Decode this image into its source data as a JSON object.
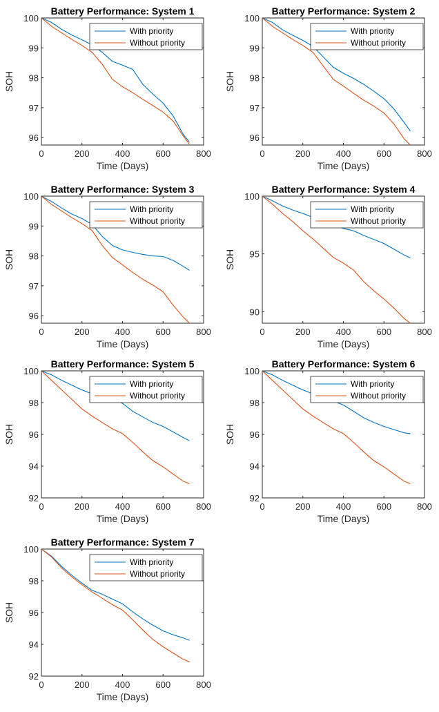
{
  "chart_data": [
    {
      "type": "line",
      "title": "Battery Performance: System 1",
      "xlabel": "Time (Days)",
      "ylabel": "SOH",
      "xlim": [
        0,
        800
      ],
      "ylim": [
        95.75,
        100
      ],
      "xticks": [
        0,
        200,
        400,
        600,
        800
      ],
      "yticks": [
        96,
        97,
        98,
        99,
        100
      ],
      "grid": false,
      "legend": "top-right",
      "series": [
        {
          "name": "With priority",
          "color": "#0072bd",
          "x": [
            0,
            50,
            100,
            150,
            200,
            250,
            300,
            350,
            400,
            450,
            500,
            550,
            600,
            650,
            700,
            730
          ],
          "y": [
            100,
            99.85,
            99.62,
            99.43,
            99.27,
            99.1,
            98.85,
            98.55,
            98.42,
            98.28,
            97.78,
            97.45,
            97.15,
            96.72,
            96.1,
            95.85
          ]
        },
        {
          "name": "Without priority",
          "color": "#d95319",
          "x": [
            0,
            50,
            100,
            150,
            200,
            250,
            300,
            350,
            400,
            450,
            500,
            550,
            600,
            650,
            700,
            730
          ],
          "y": [
            100,
            99.72,
            99.5,
            99.28,
            99.08,
            98.85,
            98.45,
            97.95,
            97.7,
            97.5,
            97.28,
            97.07,
            96.85,
            96.55,
            96.05,
            95.78
          ]
        }
      ]
    },
    {
      "type": "line",
      "title": "Battery Performance: System 2",
      "xlabel": "Time (Days)",
      "ylabel": "SOH",
      "xlim": [
        0,
        800
      ],
      "ylim": [
        95.75,
        100
      ],
      "xticks": [
        0,
        200,
        400,
        600,
        800
      ],
      "yticks": [
        96,
        97,
        98,
        99,
        100
      ],
      "grid": false,
      "legend": "top-right",
      "series": [
        {
          "name": "With priority",
          "color": "#0072bd",
          "x": [
            0,
            50,
            100,
            150,
            200,
            250,
            300,
            350,
            400,
            450,
            500,
            550,
            600,
            650,
            700,
            730
          ],
          "y": [
            100,
            99.85,
            99.6,
            99.42,
            99.25,
            99.05,
            98.7,
            98.35,
            98.15,
            97.98,
            97.78,
            97.55,
            97.3,
            96.95,
            96.5,
            96.22
          ]
        },
        {
          "name": "Without priority",
          "color": "#d95319",
          "x": [
            0,
            50,
            100,
            150,
            200,
            250,
            300,
            350,
            400,
            450,
            500,
            550,
            600,
            650,
            700,
            730
          ],
          "y": [
            100,
            99.72,
            99.5,
            99.28,
            99.08,
            98.85,
            98.4,
            97.95,
            97.72,
            97.48,
            97.25,
            97.05,
            96.82,
            96.45,
            95.95,
            95.75
          ]
        }
      ]
    },
    {
      "type": "line",
      "title": "Battery Performance: System 3",
      "xlabel": "Time (Days)",
      "ylabel": "SOH",
      "xlim": [
        0,
        800
      ],
      "ylim": [
        95.75,
        100
      ],
      "xticks": [
        0,
        200,
        400,
        600,
        800
      ],
      "yticks": [
        96,
        97,
        98,
        99,
        100
      ],
      "grid": false,
      "legend": "top-right",
      "series": [
        {
          "name": "With priority",
          "color": "#0072bd",
          "x": [
            0,
            50,
            100,
            150,
            200,
            250,
            300,
            350,
            400,
            450,
            500,
            550,
            600,
            650,
            700,
            730
          ],
          "y": [
            100,
            99.82,
            99.6,
            99.4,
            99.25,
            99.05,
            98.65,
            98.35,
            98.2,
            98.12,
            98.05,
            98.0,
            97.98,
            97.85,
            97.65,
            97.52
          ]
        },
        {
          "name": "Without priority",
          "color": "#d95319",
          "x": [
            0,
            50,
            100,
            150,
            200,
            250,
            300,
            350,
            400,
            450,
            500,
            550,
            600,
            650,
            700,
            730
          ],
          "y": [
            100,
            99.72,
            99.5,
            99.28,
            99.08,
            98.85,
            98.35,
            97.95,
            97.7,
            97.45,
            97.22,
            97.02,
            96.8,
            96.35,
            95.95,
            95.75
          ]
        }
      ]
    },
    {
      "type": "line",
      "title": "Battery Performance: System 4",
      "xlabel": "Time (Days)",
      "ylabel": "SOH",
      "xlim": [
        0,
        800
      ],
      "ylim": [
        89,
        100
      ],
      "xticks": [
        0,
        200,
        400,
        600,
        800
      ],
      "yticks": [
        90,
        95,
        100
      ],
      "grid": false,
      "legend": "top-right",
      "series": [
        {
          "name": "With priority",
          "color": "#0072bd",
          "x": [
            0,
            50,
            100,
            150,
            200,
            250,
            300,
            350,
            400,
            450,
            500,
            550,
            600,
            650,
            700,
            730
          ],
          "y": [
            100,
            99.6,
            99.15,
            98.8,
            98.5,
            98.15,
            97.8,
            97.5,
            97.2,
            97.0,
            96.6,
            96.25,
            95.9,
            95.4,
            94.9,
            94.65
          ]
        },
        {
          "name": "Without priority",
          "color": "#d95319",
          "x": [
            0,
            50,
            100,
            150,
            200,
            250,
            300,
            350,
            400,
            450,
            500,
            550,
            600,
            650,
            700,
            730
          ],
          "y": [
            100,
            99.3,
            98.5,
            97.8,
            97.0,
            96.3,
            95.5,
            94.7,
            94.2,
            93.6,
            92.6,
            91.8,
            91.1,
            90.3,
            89.4,
            89.0
          ]
        }
      ]
    },
    {
      "type": "line",
      "title": "Battery Performance: System 5",
      "xlabel": "Time (Days)",
      "ylabel": "SOH",
      "xlim": [
        0,
        800
      ],
      "ylim": [
        92,
        100
      ],
      "xticks": [
        0,
        200,
        400,
        600,
        800
      ],
      "yticks": [
        92,
        94,
        96,
        98,
        100
      ],
      "grid": false,
      "legend": "top-right",
      "series": [
        {
          "name": "With priority",
          "color": "#0072bd",
          "x": [
            0,
            50,
            100,
            150,
            200,
            250,
            300,
            350,
            400,
            450,
            500,
            550,
            600,
            650,
            700,
            730
          ],
          "y": [
            100,
            99.75,
            99.4,
            99.1,
            98.8,
            98.55,
            98.4,
            98.2,
            97.95,
            97.45,
            97.1,
            96.75,
            96.5,
            96.15,
            95.8,
            95.6
          ]
        },
        {
          "name": "Without priority",
          "color": "#d95319",
          "x": [
            0,
            50,
            100,
            150,
            200,
            250,
            300,
            350,
            400,
            450,
            500,
            550,
            600,
            650,
            700,
            730
          ],
          "y": [
            100,
            99.4,
            98.8,
            98.2,
            97.6,
            97.15,
            96.75,
            96.35,
            96.05,
            95.5,
            94.9,
            94.35,
            93.95,
            93.5,
            93.05,
            92.9
          ]
        }
      ]
    },
    {
      "type": "line",
      "title": "Battery Performance: System 6",
      "xlabel": "Time (Days)",
      "ylabel": "SOH",
      "xlim": [
        0,
        800
      ],
      "ylim": [
        92,
        100
      ],
      "xticks": [
        0,
        200,
        400,
        600,
        800
      ],
      "yticks": [
        92,
        94,
        96,
        98,
        100
      ],
      "grid": false,
      "legend": "top-right",
      "series": [
        {
          "name": "With priority",
          "color": "#0072bd",
          "x": [
            0,
            50,
            100,
            150,
            200,
            250,
            300,
            350,
            400,
            450,
            500,
            550,
            600,
            650,
            700,
            730
          ],
          "y": [
            100,
            99.75,
            99.4,
            99.1,
            98.8,
            98.55,
            98.35,
            98.1,
            97.85,
            97.45,
            97.05,
            96.75,
            96.5,
            96.3,
            96.1,
            96.05
          ]
        },
        {
          "name": "Without priority",
          "color": "#d95319",
          "x": [
            0,
            50,
            100,
            150,
            200,
            250,
            300,
            350,
            400,
            450,
            500,
            550,
            600,
            650,
            700,
            730
          ],
          "y": [
            100,
            99.4,
            98.8,
            98.2,
            97.6,
            97.15,
            96.75,
            96.35,
            96.05,
            95.5,
            94.9,
            94.35,
            93.95,
            93.5,
            93.05,
            92.9
          ]
        }
      ]
    },
    {
      "type": "line",
      "title": "Battery Performance: System 7",
      "xlabel": "Time (Days)",
      "ylabel": "SOH",
      "xlim": [
        0,
        800
      ],
      "ylim": [
        92,
        100
      ],
      "xticks": [
        0,
        200,
        400,
        600,
        800
      ],
      "yticks": [
        92,
        94,
        96,
        98,
        100
      ],
      "grid": false,
      "legend": "top-right",
      "series": [
        {
          "name": "With priority",
          "color": "#0072bd",
          "x": [
            0,
            50,
            100,
            150,
            200,
            250,
            300,
            350,
            400,
            450,
            500,
            550,
            600,
            650,
            700,
            730
          ],
          "y": [
            100,
            99.55,
            98.9,
            98.35,
            97.85,
            97.4,
            97.15,
            96.85,
            96.55,
            96.05,
            95.6,
            95.2,
            94.85,
            94.6,
            94.4,
            94.25
          ]
        },
        {
          "name": "Without priority",
          "color": "#d95319",
          "x": [
            0,
            50,
            100,
            150,
            200,
            250,
            300,
            350,
            400,
            450,
            500,
            550,
            600,
            650,
            700,
            730
          ],
          "y": [
            100,
            99.5,
            98.8,
            98.25,
            97.75,
            97.3,
            96.9,
            96.5,
            96.15,
            95.55,
            94.9,
            94.3,
            93.85,
            93.45,
            93.05,
            92.9
          ]
        }
      ]
    }
  ]
}
